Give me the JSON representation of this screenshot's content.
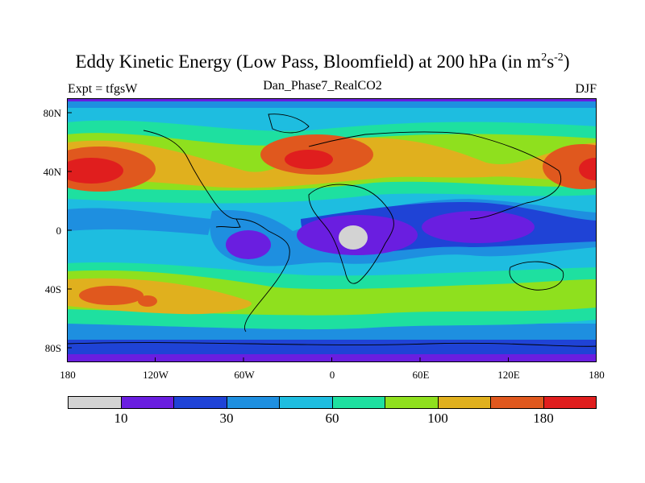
{
  "title": {
    "main": "Eddy Kinetic Energy (Low Pass, Bloomfield) at 200 hPa (in m",
    "sup1": "2",
    "mid": "s",
    "sup2": "-2",
    "end": ")"
  },
  "subtitle_left": "Expt = tfgsW",
  "subtitle_center": "Dan_Phase7_RealCO2",
  "subtitle_right": "DJF",
  "lat_ticks": [
    "80N",
    "40N",
    "0",
    "40S",
    "80S"
  ],
  "lon_ticks": [
    "180",
    "120W",
    "60W",
    "0",
    "60E",
    "120E",
    "180"
  ],
  "colorbar": {
    "colors": [
      "#d3d3d3",
      "#6a1ee0",
      "#1f43d6",
      "#1e8fe0",
      "#1ebde0",
      "#1ee0a0",
      "#8fe01e",
      "#e0b01e",
      "#e0581e",
      "#e01e1e"
    ],
    "labels": [
      "10",
      "30",
      "60",
      "100",
      "180"
    ]
  },
  "map": {
    "levels": [
      "#d3d3d3",
      "#6a1ee0",
      "#1f43d6",
      "#1e8fe0",
      "#1ebde0",
      "#1ee0a0",
      "#8fe01e",
      "#e0b01e",
      "#e0581e",
      "#e01e1e"
    ]
  }
}
